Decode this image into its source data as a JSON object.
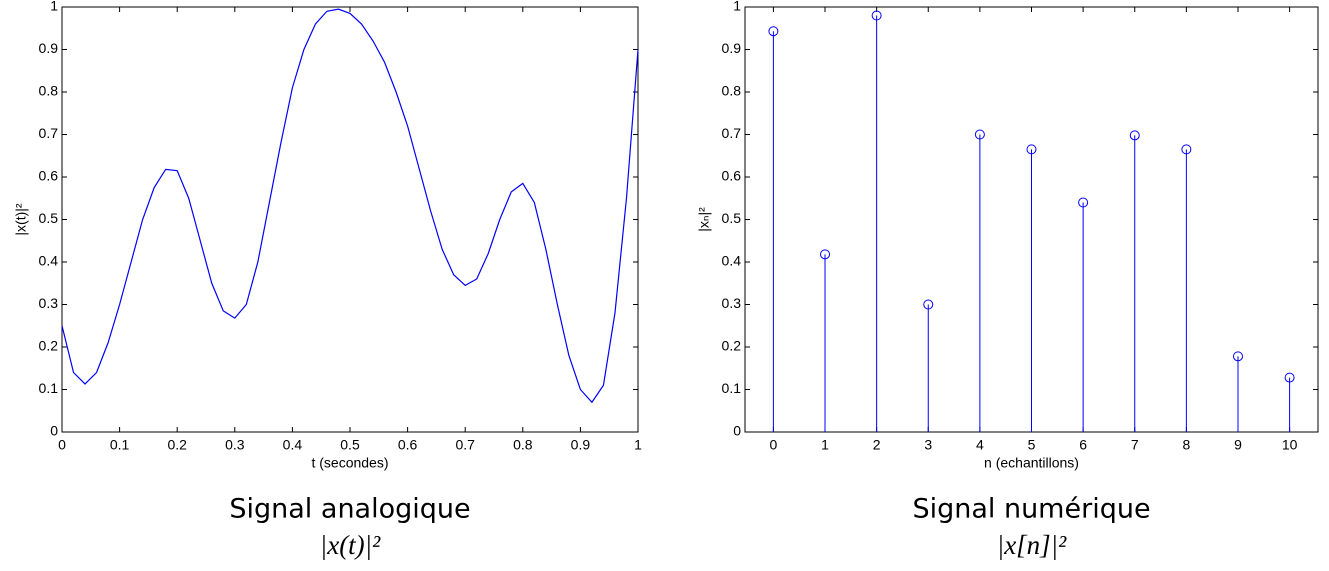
{
  "chart_data": [
    {
      "type": "line",
      "caption": "Signal analogique",
      "caption_formula": "|x(t)|²",
      "xlabel": "t (secondes)",
      "ylabel": "|x(t)|²",
      "color": "#0000ff",
      "x": [
        0,
        0.02,
        0.04,
        0.06,
        0.08,
        0.1,
        0.12,
        0.14,
        0.16,
        0.18,
        0.2,
        0.22,
        0.24,
        0.26,
        0.28,
        0.3,
        0.32,
        0.34,
        0.36,
        0.38,
        0.4,
        0.42,
        0.44,
        0.46,
        0.48,
        0.5,
        0.52,
        0.54,
        0.56,
        0.58,
        0.6,
        0.62,
        0.64,
        0.66,
        0.68,
        0.7,
        0.72,
        0.74,
        0.76,
        0.78,
        0.8,
        0.82,
        0.84,
        0.86,
        0.88,
        0.9,
        0.92,
        0.94,
        0.96,
        0.98,
        1
      ],
      "values": [
        0.25,
        0.14,
        0.113,
        0.14,
        0.21,
        0.3,
        0.4,
        0.5,
        0.575,
        0.618,
        0.615,
        0.55,
        0.45,
        0.35,
        0.285,
        0.268,
        0.3,
        0.4,
        0.54,
        0.68,
        0.81,
        0.9,
        0.96,
        0.99,
        0.995,
        0.985,
        0.96,
        0.92,
        0.87,
        0.8,
        0.72,
        0.62,
        0.52,
        0.43,
        0.37,
        0.345,
        0.36,
        0.42,
        0.5,
        0.565,
        0.585,
        0.54,
        0.43,
        0.3,
        0.18,
        0.1,
        0.07,
        0.11,
        0.28,
        0.55,
        0.9
      ],
      "xlim": [
        0,
        1
      ],
      "xticks": [
        0,
        0.1,
        0.2,
        0.3,
        0.4,
        0.5,
        0.6,
        0.7,
        0.8,
        0.9,
        1
      ],
      "ylim": [
        0,
        1
      ],
      "yticks": [
        0,
        0.1,
        0.2,
        0.3,
        0.4,
        0.5,
        0.6,
        0.7,
        0.8,
        0.9,
        1
      ]
    },
    {
      "type": "stem",
      "caption": "Signal numérique",
      "caption_formula": "|x[n]|²",
      "xlabel": "n (echantillons)",
      "ylabel": "|xₙ|²",
      "color": "#0000ff",
      "x": [
        0,
        1,
        2,
        3,
        4,
        5,
        6,
        7,
        8,
        9,
        10
      ],
      "values": [
        0.943,
        0.418,
        0.98,
        0.3,
        0.7,
        0.665,
        0.54,
        0.698,
        0.665,
        0.178,
        0.128
      ],
      "xlim": [
        -0.55,
        10.55
      ],
      "xticks": [
        0,
        1,
        2,
        3,
        4,
        5,
        6,
        7,
        8,
        9,
        10
      ],
      "ylim": [
        0,
        1
      ],
      "yticks": [
        0,
        0.1,
        0.2,
        0.3,
        0.4,
        0.5,
        0.6,
        0.7,
        0.8,
        0.9,
        1
      ]
    }
  ]
}
